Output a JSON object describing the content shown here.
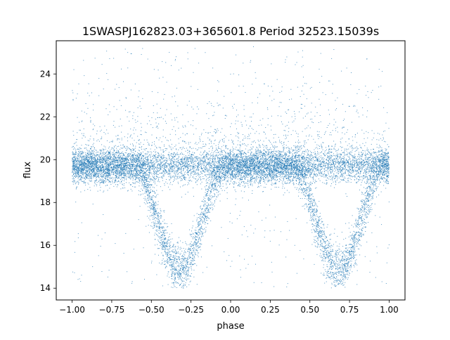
{
  "chart_data": {
    "type": "scatter",
    "title": "1SWASPJ162823.03+365601.8 Period 32523.15039s",
    "xlabel": "phase",
    "ylabel": "flux",
    "xlim": [
      -1.1,
      1.1
    ],
    "ylim": [
      13.45,
      25.55
    ],
    "x_ticks": [
      -1.0,
      -0.75,
      -0.5,
      -0.25,
      0.0,
      0.25,
      0.5,
      0.75,
      1.0
    ],
    "x_tick_labels": [
      "−1.00",
      "−0.75",
      "−0.50",
      "−0.25",
      "0.00",
      "0.25",
      "0.50",
      "0.75",
      "1.00"
    ],
    "y_ticks": [
      14,
      16,
      18,
      20,
      22,
      24
    ],
    "y_tick_labels": [
      "14",
      "16",
      "18",
      "20",
      "22",
      "24"
    ],
    "grid": false,
    "series": [
      {
        "color": "#1f77b4",
        "point_count_approx": 60000,
        "baseline_flux": 19.7,
        "baseline_scatter": 0.4,
        "eclipse_minima": [
          {
            "phase": -0.32,
            "flux": 14.9
          },
          {
            "phase": 0.68,
            "flux": 14.9
          }
        ],
        "eclipse_halfwidth_phase": 0.27,
        "phase_range": [
          -1.0,
          1.0
        ],
        "flux_range": [
          14.0,
          25.3
        ]
      }
    ]
  }
}
